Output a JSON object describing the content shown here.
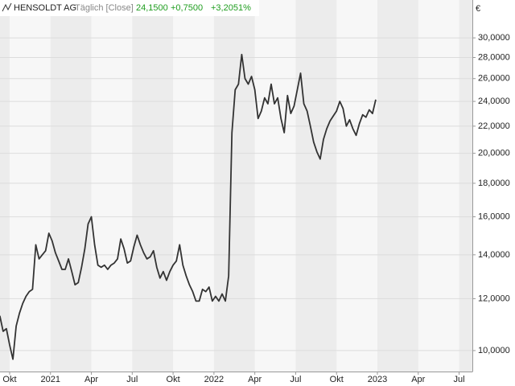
{
  "chart_data": {
    "type": "line",
    "title": "HENSOLDT AG",
    "subtitle": "Täglich [Close]",
    "quote": {
      "last": "24,1500",
      "change": "+0,7500",
      "change_pct": "+3,2051%",
      "color": "#1f9d1f"
    },
    "y_unit": "€",
    "log_scale": true,
    "grid": true,
    "x": [
      2020.69,
      2020.71,
      2020.73,
      2020.75,
      2020.77,
      2020.79,
      2020.81,
      2020.83,
      2020.85,
      2020.87,
      2020.89,
      2020.91,
      2020.93,
      2020.95,
      2020.97,
      2020.99,
      2021.01,
      2021.03,
      2021.05,
      2021.07,
      2021.09,
      2021.11,
      2021.13,
      2021.15,
      2021.17,
      2021.19,
      2021.21,
      2021.23,
      2021.25,
      2021.27,
      2021.29,
      2021.31,
      2021.33,
      2021.35,
      2021.37,
      2021.39,
      2021.41,
      2021.43,
      2021.45,
      2021.47,
      2021.49,
      2021.51,
      2021.53,
      2021.55,
      2021.57,
      2021.59,
      2021.61,
      2021.63,
      2021.65,
      2021.67,
      2021.69,
      2021.71,
      2021.73,
      2021.75,
      2021.77,
      2021.79,
      2021.81,
      2021.83,
      2021.85,
      2021.87,
      2021.89,
      2021.91,
      2021.93,
      2021.95,
      2021.97,
      2021.99,
      2022.01,
      2022.03,
      2022.05,
      2022.07,
      2022.09,
      2022.11,
      2022.13,
      2022.15,
      2022.17,
      2022.19,
      2022.21,
      2022.23,
      2022.25,
      2022.27,
      2022.29,
      2022.31,
      2022.33,
      2022.35,
      2022.37,
      2022.39,
      2022.41,
      2022.43,
      2022.45,
      2022.47,
      2022.49,
      2022.51,
      2022.53,
      2022.55,
      2022.57,
      2022.59,
      2022.61,
      2022.63,
      2022.65,
      2022.67,
      2022.69,
      2022.71,
      2022.73,
      2022.75,
      2022.77,
      2022.79,
      2022.81,
      2022.83,
      2022.85,
      2022.87,
      2022.89,
      2022.91,
      2022.93,
      2022.95,
      2022.97,
      2022.99
    ],
    "series": [
      {
        "color": "#333333",
        "values": [
          11.3,
          10.7,
          10.8,
          10.2,
          9.7,
          10.9,
          11.4,
          11.8,
          12.1,
          12.3,
          12.4,
          14.5,
          13.8,
          14.0,
          14.2,
          15.1,
          14.7,
          14.1,
          13.7,
          13.3,
          13.3,
          13.8,
          13.2,
          12.6,
          12.7,
          13.4,
          14.3,
          15.6,
          16.0,
          14.5,
          13.5,
          13.4,
          13.5,
          13.3,
          13.5,
          13.6,
          13.8,
          14.8,
          14.3,
          13.6,
          13.7,
          14.4,
          15.0,
          14.5,
          14.1,
          13.8,
          13.9,
          14.2,
          13.4,
          12.9,
          13.2,
          12.8,
          13.2,
          13.5,
          13.7,
          14.5,
          13.5,
          13.0,
          12.6,
          12.3,
          11.9,
          11.9,
          12.4,
          12.3,
          12.5,
          11.9,
          12.1,
          11.9,
          12.2,
          11.9,
          13.0,
          21.5,
          25.0,
          25.5,
          28.3,
          26.0,
          25.5,
          26.2,
          25.0,
          22.6,
          23.2,
          24.3,
          23.8,
          25.5,
          23.8,
          24.3,
          22.6,
          21.5,
          24.5,
          23.0,
          23.6,
          25.0,
          26.5,
          23.8,
          23.2,
          22.0,
          20.8,
          20.1,
          19.6,
          21.0,
          21.8,
          22.4,
          22.8,
          23.2,
          24.0,
          23.4,
          22.0,
          22.5,
          21.8,
          21.3,
          22.2,
          22.9,
          22.7,
          23.3,
          23.0,
          24.15
        ]
      }
    ],
    "xlim": [
      2020.691,
      2023.581
    ],
    "xticks": [
      {
        "value": 2020.75,
        "label": "Okt"
      },
      2021,
      {
        "value": 2021.25,
        "label": "Apr"
      },
      {
        "value": 2021.5,
        "label": "Jul"
      },
      {
        "value": 2021.75,
        "label": "Okt"
      },
      2022,
      {
        "value": 2022.25,
        "label": "Apr"
      },
      {
        "value": 2022.5,
        "label": "Jul"
      },
      {
        "value": 2022.75,
        "label": "Okt"
      },
      2023,
      {
        "value": 2023.25,
        "label": "Apr"
      },
      {
        "value": 2023.5,
        "label": "Jul"
      }
    ],
    "ylim": [
      9.29,
      34.27
    ],
    "yticks": [
      {
        "value": 10,
        "label": "10,0000"
      },
      {
        "value": 12,
        "label": "12,0000"
      },
      {
        "value": 14,
        "label": "14,0000"
      },
      {
        "value": 16,
        "label": "16,0000"
      },
      {
        "value": 18,
        "label": "18,0000"
      },
      {
        "value": 20,
        "label": "20,0000"
      },
      {
        "value": 22,
        "label": "22,0000"
      },
      {
        "value": 24,
        "label": "24,0000"
      },
      {
        "value": 26,
        "label": "26,0000"
      },
      {
        "value": 28,
        "label": "28,0000"
      },
      {
        "value": 30,
        "label": "30,0000"
      }
    ]
  }
}
